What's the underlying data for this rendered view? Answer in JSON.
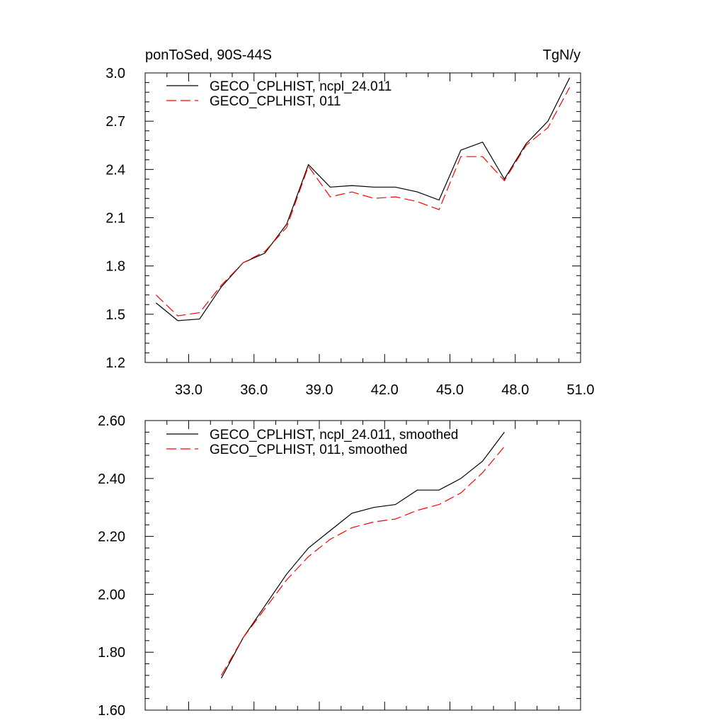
{
  "chart_data": [
    {
      "type": "line",
      "title": "ponToSed, 90S-44S",
      "units": "TgN/y",
      "xlim": [
        31.0,
        51.0
      ],
      "ylim": [
        1.2,
        3.0
      ],
      "xticks": [
        33.0,
        36.0,
        39.0,
        42.0,
        45.0,
        48.0,
        51.0
      ],
      "xtick_labels": [
        "33.0",
        "36.0",
        "39.0",
        "42.0",
        "45.0",
        "48.0",
        "51.0"
      ],
      "yticks": [
        1.2,
        1.5,
        1.8,
        2.1,
        2.4,
        2.7,
        3.0
      ],
      "ytick_labels": [
        "1.2",
        "1.5",
        "1.8",
        "2.1",
        "2.4",
        "2.7",
        "3.0"
      ],
      "legend": "top-left",
      "x": [
        31.5,
        32.5,
        33.5,
        34.5,
        35.5,
        36.5,
        37.5,
        38.5,
        39.5,
        40.5,
        41.5,
        42.5,
        43.5,
        44.5,
        45.5,
        46.5,
        47.5,
        48.5,
        49.5,
        50.5
      ],
      "series": [
        {
          "name": "GECO_CPLHIST, ncpl_24.011",
          "color": "#000000",
          "dash": "solid",
          "values": [
            1.57,
            1.46,
            1.47,
            1.67,
            1.82,
            1.88,
            2.06,
            2.43,
            2.29,
            2.3,
            2.29,
            2.29,
            2.26,
            2.21,
            2.52,
            2.57,
            2.34,
            2.56,
            2.7,
            2.97
          ]
        },
        {
          "name": "GECO_CPLHIST, 011",
          "color": "#ff0000",
          "dash": "dashed",
          "values": [
            1.62,
            1.49,
            1.51,
            1.68,
            1.82,
            1.89,
            2.04,
            2.42,
            2.23,
            2.26,
            2.22,
            2.23,
            2.2,
            2.15,
            2.48,
            2.48,
            2.33,
            2.55,
            2.66,
            2.91
          ]
        }
      ]
    },
    {
      "type": "line",
      "xlim": [
        31.0,
        51.0
      ],
      "ylim": [
        1.6,
        2.6
      ],
      "xticks": [
        33.0,
        36.0,
        39.0,
        42.0,
        45.0,
        48.0,
        51.0
      ],
      "yticks": [
        1.6,
        1.8,
        2.0,
        2.2,
        2.4,
        2.6
      ],
      "ytick_labels": [
        "1.60",
        "1.80",
        "2.00",
        "2.20",
        "2.40",
        "2.60"
      ],
      "legend": "top-left",
      "x": [
        34.5,
        35.5,
        36.5,
        37.5,
        38.5,
        39.5,
        40.5,
        41.5,
        42.5,
        43.5,
        44.5,
        45.5,
        46.5,
        47.5
      ],
      "series": [
        {
          "name": "GECO_CPLHIST, ncpl_24.011, smoothed",
          "color": "#000000",
          "dash": "solid",
          "values": [
            1.71,
            1.85,
            1.96,
            2.07,
            2.16,
            2.22,
            2.28,
            2.3,
            2.31,
            2.36,
            2.36,
            2.4,
            2.46,
            2.56
          ]
        },
        {
          "name": "GECO_CPLHIST, 011, smoothed",
          "color": "#ff0000",
          "dash": "dashed",
          "values": [
            1.72,
            1.85,
            1.95,
            2.05,
            2.13,
            2.19,
            2.23,
            2.25,
            2.26,
            2.29,
            2.31,
            2.35,
            2.42,
            2.51
          ]
        }
      ]
    }
  ]
}
